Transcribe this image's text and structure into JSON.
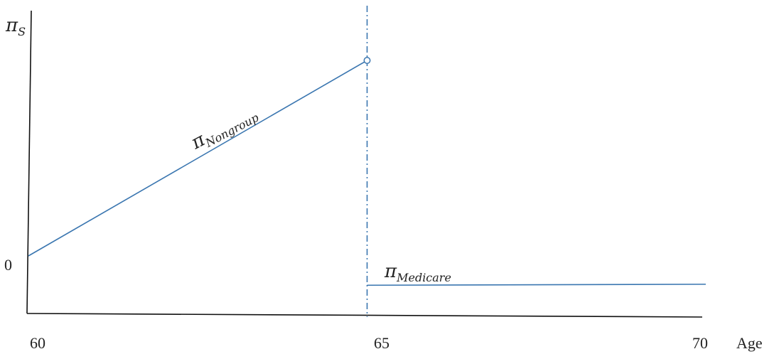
{
  "chart_data": {
    "type": "line",
    "xlabel": "Age",
    "ylabel": "πS",
    "ylabel_parts": {
      "base": "π",
      "sub": "S"
    },
    "x_ticks": [
      60,
      65,
      70
    ],
    "y_ticks": [
      0
    ],
    "xlim": [
      60,
      70
    ],
    "ylim": [
      -0.18,
      1
    ],
    "grid": false,
    "vline": {
      "x": 65,
      "style": "dash-dot",
      "color": "#3a76b0"
    },
    "series": [
      {
        "name": "πNongroup",
        "label_parts": {
          "base": "π",
          "sub": "Nongroup"
        },
        "color": "#3a76b0",
        "x": [
          60,
          65
        ],
        "y": [
          0,
          1
        ],
        "end_marker": "open-circle"
      },
      {
        "name": "πMedicare",
        "label_parts": {
          "base": "π",
          "sub": "Medicare"
        },
        "color": "#3a76b0",
        "x": [
          65,
          70
        ],
        "y": [
          -0.15,
          -0.145
        ]
      }
    ]
  }
}
